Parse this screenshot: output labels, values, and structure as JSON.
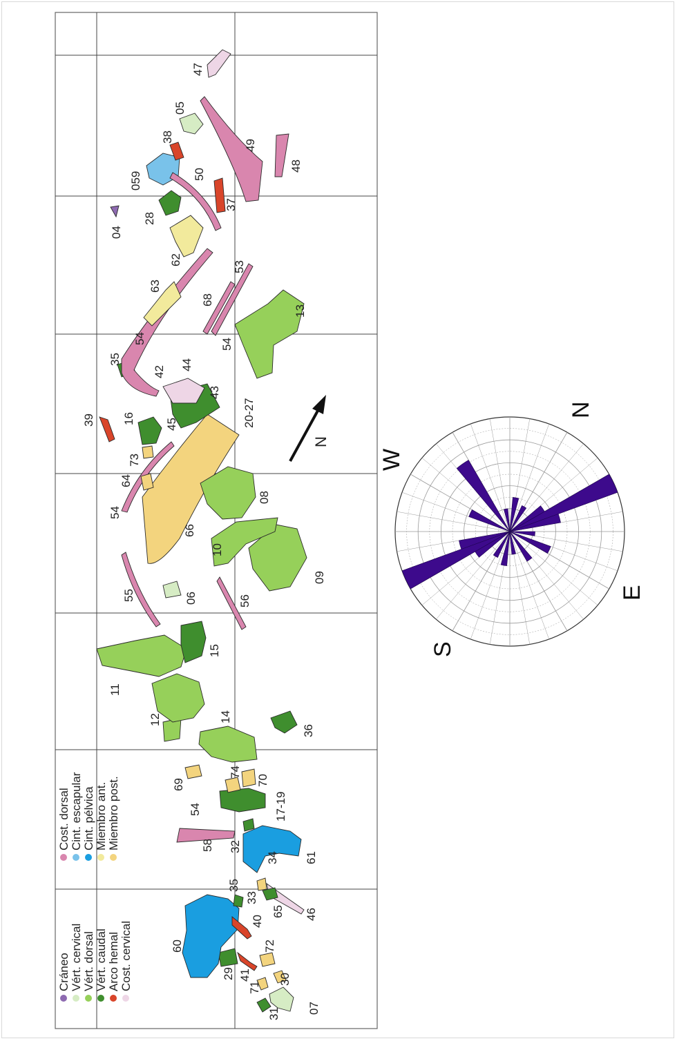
{
  "legend": [
    {
      "label": "Cráneo",
      "color": "#8e6ab1"
    },
    {
      "label": "Vért. cervical",
      "color": "#d6ecc4"
    },
    {
      "label": "Vért. dorsal",
      "color": "#96d05a"
    },
    {
      "label": "Vért. caudal",
      "color": "#3f8e2e"
    },
    {
      "label": "Arco hemal",
      "color": "#d9452a"
    },
    {
      "label": "Cost. cervical",
      "color": "#eed6e6"
    },
    {
      "label": "Cost. dorsal",
      "color": "#d986ae"
    },
    {
      "label": "Cint. escapular",
      "color": "#79c2ea"
    },
    {
      "label": "Cint. pélvica",
      "color": "#1a9ee0"
    },
    {
      "label": "Miembro ant.",
      "color": "#f2ea9c"
    },
    {
      "label": "Miembro post.",
      "color": "#f3d47e"
    }
  ],
  "specimens": [
    "07",
    "31",
    "71",
    "30",
    "41",
    "72",
    "29",
    "60",
    "40",
    "65",
    "33",
    "35",
    "46",
    "61",
    "34",
    "32",
    "58",
    "54",
    "17-19",
    "70",
    "74",
    "69",
    "14",
    "36",
    "12",
    "11",
    "15",
    "55",
    "06",
    "56",
    "66",
    "09",
    "10",
    "08",
    "54",
    "64",
    "73",
    "39",
    "16",
    "45",
    "20-27",
    "43",
    "35",
    "42",
    "44",
    "54",
    "13",
    "54",
    "63",
    "68",
    "62",
    "53",
    "04",
    "28",
    "37",
    "059",
    "38",
    "50",
    "49",
    "48",
    "05",
    "47"
  ],
  "north_arrow_label": "N",
  "rose_diagram": {
    "labels": {
      "N": "N",
      "E": "E",
      "S": "S",
      "W": "W"
    },
    "petal_color": "#3d0a8c",
    "petals": [
      {
        "bearing": 5,
        "length": 1.0
      },
      {
        "bearing": 15,
        "length": 0.45
      },
      {
        "bearing": 35,
        "length": 0.22
      },
      {
        "bearing": 55,
        "length": 0.38
      },
      {
        "bearing": 85,
        "length": 0.3
      },
      {
        "bearing": 110,
        "length": 0.2
      },
      {
        "bearing": 130,
        "length": 0.3
      },
      {
        "bearing": 150,
        "length": 0.25
      },
      {
        "bearing": 175,
        "length": 0.35
      },
      {
        "bearing": 185,
        "length": 1.0
      },
      {
        "bearing": 195,
        "length": 0.45
      },
      {
        "bearing": 235,
        "length": 0.38
      },
      {
        "bearing": 265,
        "length": 0.72
      },
      {
        "bearing": 290,
        "length": 0.2
      },
      {
        "bearing": 310,
        "length": 0.3
      },
      {
        "bearing": 330,
        "length": 0.25
      },
      {
        "bearing": 355,
        "length": 0.35
      }
    ]
  }
}
